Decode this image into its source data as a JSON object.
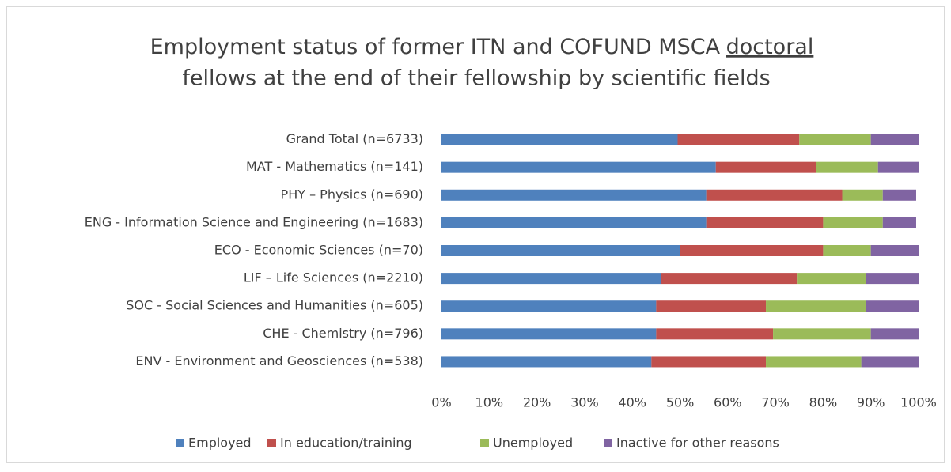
{
  "chart_data": {
    "type": "stacked_barh",
    "title": [
      "Employment status of former ITN and COFUND MSCA",
      "doctoral",
      "fellows at the end of their fellowship  by scientific fields"
    ],
    "categories": [
      "Grand Total (n=6733)",
      "MAT - Mathematics (n=141)",
      "PHY – Physics (n=690)",
      "ENG - Information Science and Engineering (n=1683)",
      "ECO - Economic Sciences (n=70)",
      "LIF – Life Sciences (n=2210)",
      "SOC - Social Sciences and Humanities (n=605)",
      "CHE - Chemistry (n=796)",
      "ENV - Environment and Geosciences (n=538)"
    ],
    "series": [
      {
        "name": "Employed",
        "color": "#4f81bd",
        "values": [
          49.5,
          57.5,
          55.5,
          55.5,
          50,
          46,
          45,
          45,
          44
        ]
      },
      {
        "name": "In education/training",
        "color": "#c0504d",
        "values": [
          25.5,
          21,
          28.5,
          24.5,
          30,
          28.5,
          23,
          24.5,
          24
        ]
      },
      {
        "name": "Unemployed",
        "color": "#9bbb59",
        "values": [
          15,
          13,
          8.5,
          12.5,
          10,
          14.5,
          21,
          20.5,
          20
        ]
      },
      {
        "name": "Inactive for other reasons",
        "color": "#8064a2",
        "values": [
          10,
          8.5,
          7,
          7,
          10,
          11,
          11,
          10,
          12
        ]
      }
    ],
    "xlim": [
      0,
      100
    ],
    "xticks": [
      {
        "value": 0,
        "label": "0%"
      },
      {
        "value": 10,
        "label": "10%"
      },
      {
        "value": 20,
        "label": "20%"
      },
      {
        "value": 30,
        "label": "30%"
      },
      {
        "value": 40,
        "label": "40%"
      },
      {
        "value": 50,
        "label": "50%"
      },
      {
        "value": 60,
        "label": "60%"
      },
      {
        "value": 70,
        "label": "70%"
      },
      {
        "value": 80,
        "label": "80%"
      },
      {
        "value": 90,
        "label": "90%"
      },
      {
        "value": 100,
        "label": "100%"
      }
    ],
    "legend": "bottom"
  }
}
